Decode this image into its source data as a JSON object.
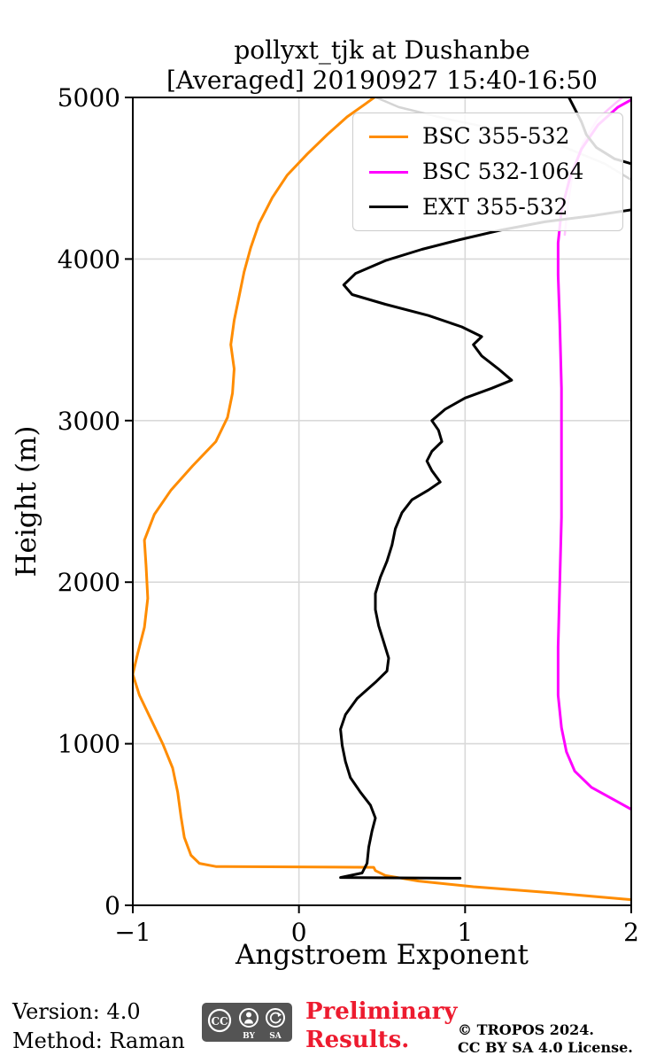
{
  "footer": {
    "version": "Version: 4.0",
    "method": "Method: Raman",
    "preliminary_line1": "Preliminary",
    "preliminary_line2": "Results.",
    "preliminary_color": "#ed1b2f",
    "copyright_line1": "© TROPOS 2024.",
    "copyright_line2": "CC BY SA 4.0 License.",
    "cc_badge": {
      "cc": "CC",
      "by": "BY",
      "sa": "SA"
    }
  },
  "chart_data": {
    "type": "line",
    "title": "pollyxt_tjk at Dushanbe",
    "subtitle": "[Averaged] 20190927 15:40-16:50",
    "xlabel": "Angstroem Exponent",
    "ylabel": "Height (m)",
    "xlim": [
      -1,
      2
    ],
    "ylim": [
      0,
      5000
    ],
    "xticks": [
      -1,
      0,
      1,
      2
    ],
    "xtick_labels": [
      "−1",
      "0",
      "1",
      "2"
    ],
    "yticks": [
      0,
      1000,
      2000,
      3000,
      4000,
      5000
    ],
    "grid": true,
    "grid_color": "#d9d9d9",
    "legend_position": "upper right inside",
    "series": [
      {
        "name": "EXT 355-532 smoothed",
        "color": "#aaaaaa",
        "opacity": 0.5,
        "width": 2.5,
        "in_legend": false,
        "points": [
          [
            0.42,
            5020
          ],
          [
            0.6,
            4940
          ],
          [
            0.9,
            4865
          ],
          [
            1.25,
            4790
          ],
          [
            1.58,
            4700
          ],
          [
            1.84,
            4590
          ],
          [
            2.0,
            4490
          ],
          [
            2.1,
            4400
          ]
        ]
      },
      {
        "name": "BSC 532-1064 smoothed",
        "color": "#ffaaff",
        "opacity": 0.7,
        "width": 2.5,
        "in_legend": false,
        "points": [
          [
            1.6,
            4150
          ],
          [
            1.62,
            4350
          ],
          [
            1.65,
            4550
          ],
          [
            1.71,
            4720
          ],
          [
            1.8,
            4870
          ],
          [
            1.9,
            4960
          ],
          [
            1.97,
            5020
          ]
        ]
      },
      {
        "name": "BSC 355-532",
        "color": "#ff8c00",
        "width": 3,
        "points": [
          [
            2.05,
            30
          ],
          [
            1.55,
            75
          ],
          [
            1.05,
            115
          ],
          [
            0.72,
            150
          ],
          [
            0.52,
            185
          ],
          [
            0.46,
            215
          ],
          [
            0.45,
            235
          ],
          [
            -0.5,
            240
          ],
          [
            -0.6,
            260
          ],
          [
            -0.65,
            310
          ],
          [
            -0.69,
            420
          ],
          [
            -0.71,
            550
          ],
          [
            -0.73,
            700
          ],
          [
            -0.76,
            850
          ],
          [
            -0.82,
            1000
          ],
          [
            -0.89,
            1150
          ],
          [
            -0.96,
            1300
          ],
          [
            -1.0,
            1430
          ],
          [
            -0.97,
            1560
          ],
          [
            -0.93,
            1720
          ],
          [
            -0.91,
            1900
          ],
          [
            -0.92,
            2100
          ],
          [
            -0.93,
            2260
          ],
          [
            -0.87,
            2420
          ],
          [
            -0.77,
            2570
          ],
          [
            -0.64,
            2720
          ],
          [
            -0.5,
            2870
          ],
          [
            -0.43,
            3020
          ],
          [
            -0.4,
            3170
          ],
          [
            -0.39,
            3320
          ],
          [
            -0.41,
            3470
          ],
          [
            -0.39,
            3620
          ],
          [
            -0.36,
            3770
          ],
          [
            -0.33,
            3920
          ],
          [
            -0.29,
            4070
          ],
          [
            -0.24,
            4220
          ],
          [
            -0.16,
            4380
          ],
          [
            -0.07,
            4520
          ],
          [
            0.05,
            4650
          ],
          [
            0.17,
            4770
          ],
          [
            0.29,
            4880
          ],
          [
            0.4,
            4960
          ],
          [
            0.48,
            5020
          ]
        ]
      },
      {
        "name": "BSC 532-1064",
        "color": "#ff00ff",
        "width": 3,
        "points": [
          [
            2.06,
            560
          ],
          [
            1.92,
            640
          ],
          [
            1.76,
            730
          ],
          [
            1.66,
            830
          ],
          [
            1.61,
            950
          ],
          [
            1.58,
            1100
          ],
          [
            1.56,
            1300
          ],
          [
            1.56,
            1600
          ],
          [
            1.57,
            2000
          ],
          [
            1.58,
            2400
          ],
          [
            1.58,
            2800
          ],
          [
            1.58,
            3200
          ],
          [
            1.57,
            3600
          ],
          [
            1.56,
            3900
          ],
          [
            1.56,
            4100
          ],
          [
            1.58,
            4300
          ],
          [
            1.63,
            4500
          ],
          [
            1.7,
            4680
          ],
          [
            1.8,
            4830
          ],
          [
            1.92,
            4940
          ],
          [
            2.06,
            5020
          ]
        ]
      },
      {
        "name": "EXT 355-532",
        "color": "#000000",
        "width": 3,
        "points": [
          [
            0.97,
            168
          ],
          [
            0.25,
            172
          ],
          [
            0.38,
            200
          ],
          [
            0.41,
            260
          ],
          [
            0.42,
            360
          ],
          [
            0.44,
            460
          ],
          [
            0.46,
            540
          ],
          [
            0.43,
            620
          ],
          [
            0.37,
            700
          ],
          [
            0.31,
            790
          ],
          [
            0.28,
            890
          ],
          [
            0.26,
            990
          ],
          [
            0.25,
            1090
          ],
          [
            0.28,
            1180
          ],
          [
            0.35,
            1280
          ],
          [
            0.46,
            1380
          ],
          [
            0.53,
            1450
          ],
          [
            0.54,
            1530
          ],
          [
            0.51,
            1630
          ],
          [
            0.48,
            1730
          ],
          [
            0.46,
            1830
          ],
          [
            0.46,
            1930
          ],
          [
            0.49,
            2030
          ],
          [
            0.53,
            2130
          ],
          [
            0.56,
            2230
          ],
          [
            0.58,
            2330
          ],
          [
            0.62,
            2430
          ],
          [
            0.68,
            2510
          ],
          [
            0.78,
            2570
          ],
          [
            0.85,
            2620
          ],
          [
            0.8,
            2690
          ],
          [
            0.77,
            2750
          ],
          [
            0.8,
            2810
          ],
          [
            0.86,
            2870
          ],
          [
            0.84,
            2940
          ],
          [
            0.8,
            3000
          ],
          [
            0.88,
            3070
          ],
          [
            1.0,
            3140
          ],
          [
            1.16,
            3200
          ],
          [
            1.28,
            3250
          ],
          [
            1.2,
            3320
          ],
          [
            1.1,
            3400
          ],
          [
            1.05,
            3470
          ],
          [
            1.1,
            3520
          ],
          [
            0.98,
            3580
          ],
          [
            0.78,
            3650
          ],
          [
            0.52,
            3720
          ],
          [
            0.32,
            3780
          ],
          [
            0.27,
            3840
          ],
          [
            0.34,
            3910
          ],
          [
            0.52,
            3990
          ],
          [
            0.74,
            4060
          ],
          [
            0.97,
            4120
          ],
          [
            1.22,
            4180
          ],
          [
            1.48,
            4230
          ],
          [
            1.78,
            4270
          ],
          [
            2.1,
            4320
          ],
          [
            2.1,
            4560
          ],
          [
            1.9,
            4620
          ],
          [
            1.79,
            4690
          ],
          [
            1.73,
            4770
          ],
          [
            1.7,
            4850
          ],
          [
            1.66,
            4930
          ],
          [
            1.62,
            5010
          ]
        ]
      }
    ]
  }
}
